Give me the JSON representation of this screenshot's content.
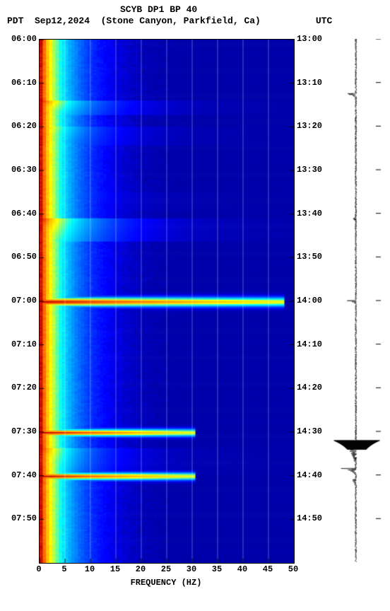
{
  "title": {
    "line1": "SCYB DP1 BP 40",
    "line2_left_tz": "PDT",
    "line2_date": "Sep12,2024",
    "line2_location": "(Stone Canyon, Parkfield, Ca)",
    "line2_right_tz": "UTC"
  },
  "axes": {
    "x_label": "FREQUENCY (HZ)",
    "x_ticks": [
      0,
      5,
      10,
      15,
      20,
      25,
      30,
      35,
      40,
      45,
      50
    ],
    "x_min": 0,
    "x_max": 50,
    "y_left_ticks": [
      "06:00",
      "06:10",
      "06:20",
      "06:30",
      "06:40",
      "06:50",
      "07:00",
      "07:10",
      "07:20",
      "07:30",
      "07:40",
      "07:50"
    ],
    "y_right_ticks": [
      "13:00",
      "13:10",
      "13:20",
      "13:30",
      "13:40",
      "13:50",
      "14:00",
      "14:10",
      "14:20",
      "14:30",
      "14:40",
      "14:50"
    ],
    "y_start_min": 0,
    "y_end_min": 120,
    "y_tick_step_min": 10,
    "label_fontsize": 12,
    "label_weight": "bold"
  },
  "layout": {
    "spectro_x": 55,
    "spectro_y": 55,
    "spectro_w": 360,
    "spectro_h": 740,
    "wave_x": 470,
    "wave_y": 55,
    "wave_w": 70,
    "wave_h": 740,
    "grid_color": "rgba(255,255,255,0.35)"
  },
  "spectrogram": {
    "type": "heatmap",
    "colormap_stops": [
      {
        "v": 0.0,
        "c": "#0000AA"
      },
      {
        "v": 0.1,
        "c": "#0000FF"
      },
      {
        "v": 0.2,
        "c": "#0040FF"
      },
      {
        "v": 0.3,
        "c": "#0080FF"
      },
      {
        "v": 0.4,
        "c": "#00C0FF"
      },
      {
        "v": 0.5,
        "c": "#00FFFF"
      },
      {
        "v": 0.6,
        "c": "#80FF80"
      },
      {
        "v": 0.7,
        "c": "#FFFF00"
      },
      {
        "v": 0.8,
        "c": "#FFC000"
      },
      {
        "v": 0.9,
        "c": "#FF6000"
      },
      {
        "v": 1.0,
        "c": "#C00000"
      }
    ],
    "nx": 80,
    "ny": 360,
    "bg_decay_hz": 6.0,
    "bg_low_intensity": 1.0,
    "bg_noise_amp": 0.07,
    "events": [
      {
        "t_min": 14.0,
        "dt": 3.0,
        "peak": 1.0,
        "reach_hz": 18,
        "type": "burst"
      },
      {
        "t_min": 20.0,
        "dt": 4.0,
        "peak": 0.95,
        "reach_hz": 16,
        "type": "burst"
      },
      {
        "t_min": 35.0,
        "dt": 4.0,
        "peak": 0.9,
        "reach_hz": 14,
        "type": "burst"
      },
      {
        "t_min": 41.0,
        "dt": 5.0,
        "peak": 1.0,
        "reach_hz": 20,
        "type": "burst"
      },
      {
        "t_min": 60.0,
        "dt": 1.5,
        "peak": 1.0,
        "reach_hz": 48,
        "type": "line"
      },
      {
        "t_min": 90.0,
        "dt": 1.2,
        "peak": 1.0,
        "reach_hz": 30,
        "type": "line"
      },
      {
        "t_min": 93.5,
        "dt": 6.0,
        "peak": 1.0,
        "reach_hz": 16,
        "type": "burst"
      },
      {
        "t_min": 100.0,
        "dt": 1.2,
        "peak": 1.0,
        "reach_hz": 30,
        "type": "line"
      }
    ]
  },
  "waveform": {
    "type": "seismogram",
    "color": "#000000",
    "baseline_amp": 0.08,
    "spikes": [
      {
        "t_min": 12.5,
        "amp": 0.55,
        "dur": 1.2
      },
      {
        "t_min": 27.0,
        "amp": 0.12,
        "dur": 6.0
      },
      {
        "t_min": 41.0,
        "amp": 0.18,
        "dur": 4.0
      },
      {
        "t_min": 60.0,
        "amp": 0.6,
        "dur": 0.8
      },
      {
        "t_min": 92.0,
        "amp": 1.0,
        "dur": 5.0,
        "solid": true
      },
      {
        "t_min": 98.5,
        "amp": 0.7,
        "dur": 1.5
      },
      {
        "t_min": 101.0,
        "amp": 0.22,
        "dur": 4.0
      }
    ]
  }
}
